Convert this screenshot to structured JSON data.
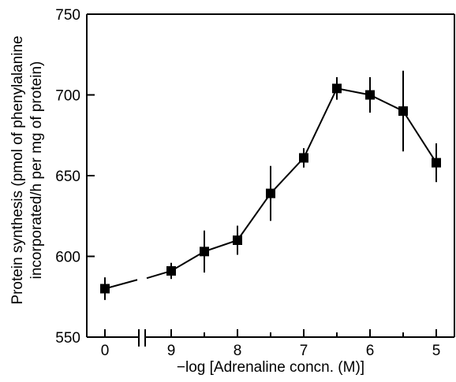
{
  "chart_data": {
    "type": "line",
    "title": "",
    "xlabel": "−log [Adrenaline concn. (M)]",
    "ylabel": [
      "Protein synthesis (pmol of phenylalanine",
      "incorporated/h per mg of protein)"
    ],
    "x_axis": {
      "reversed": true,
      "broken": true,
      "tick_labels": [
        "0",
        "9",
        "8",
        "7",
        "6",
        "5"
      ]
    },
    "ylim": [
      550,
      750
    ],
    "y_ticks": [
      550,
      600,
      650,
      700,
      750
    ],
    "grid": false,
    "series": [
      {
        "x": [
          "0",
          "9",
          "8.5",
          "8",
          "7.5",
          "7",
          "6.5",
          "6",
          "5.5",
          "5"
        ],
        "y": [
          580,
          591,
          603,
          610,
          639,
          661,
          704,
          700,
          690,
          658
        ],
        "error": [
          7,
          5,
          13,
          9,
          17,
          6,
          7,
          11,
          25,
          12
        ]
      }
    ]
  }
}
